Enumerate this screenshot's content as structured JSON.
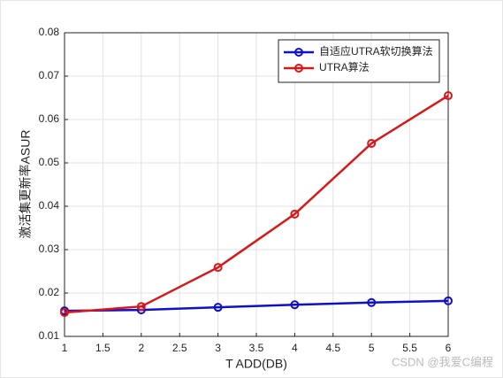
{
  "chart_data": {
    "type": "line",
    "x_label": "T ADD(DB)",
    "y_label": "激活集更新率ASUR",
    "x": [
      1,
      2,
      3,
      4,
      5,
      6
    ],
    "series": [
      {
        "name": "自适应UTRA软切换算法",
        "color": "#1010c8",
        "values": [
          0.0159,
          0.0161,
          0.0167,
          0.0173,
          0.0178,
          0.0182
        ]
      },
      {
        "name": "UTRA算法",
        "color": "#d81818",
        "values": [
          0.0155,
          0.0169,
          0.0259,
          0.0382,
          0.0545,
          0.0655
        ]
      }
    ],
    "xlim": [
      1,
      6
    ],
    "xticks": [
      1,
      1.5,
      2,
      2.5,
      3,
      3.5,
      4,
      4.5,
      5,
      5.5,
      6
    ],
    "ylim": [
      0.01,
      0.08
    ],
    "yticks": [
      0.01,
      0.02,
      0.03,
      0.04,
      0.05,
      0.06,
      0.07,
      0.08
    ],
    "grid": true,
    "legend": "upper right",
    "watermark": "CSDN @我爱C编程"
  }
}
